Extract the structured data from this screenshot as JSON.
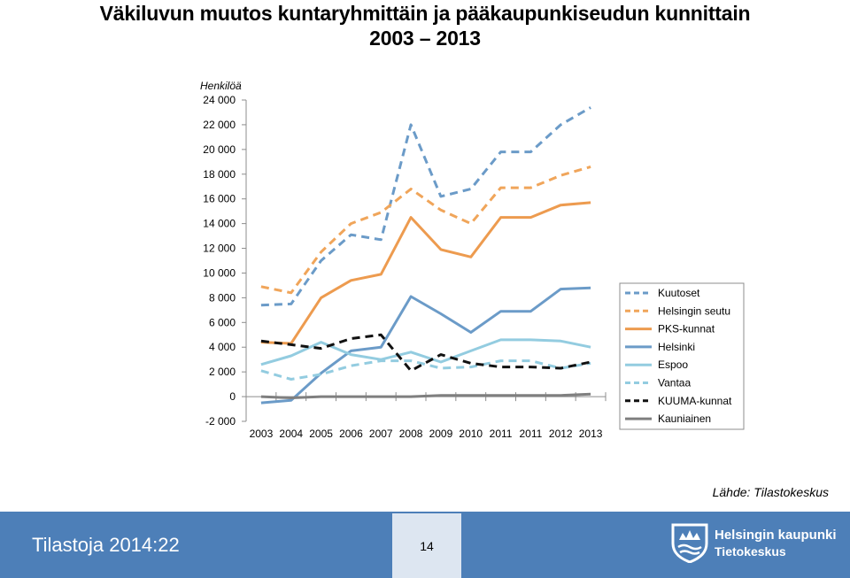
{
  "chart_data": {
    "type": "line",
    "title": "Väkiluvun muutos kuntaryhmittäin ja pääkaupunkiseudun kunnittain",
    "subtitle": "2003 – 2013",
    "ylabel": "Henkilöä",
    "xlabel": "",
    "ylim": [
      -2000,
      24000
    ],
    "yticks": [
      "24 000",
      "22 000",
      "20 000",
      "18 000",
      "16 000",
      "14 000",
      "12 000",
      "10 000",
      "8 000",
      "6 000",
      "4 000",
      "2 000",
      "0",
      "-2 000"
    ],
    "categories": [
      "2003",
      "2004",
      "2005",
      "2006",
      "2007",
      "2008",
      "2009",
      "2010",
      "2011",
      "2011",
      "2012",
      "2013"
    ],
    "legend_position": "right",
    "series": [
      {
        "name": "Kuutoset",
        "color": "#6b9bc8",
        "dash": "dashed",
        "values": [
          7400,
          7500,
          11000,
          13100,
          12700,
          22000,
          16200,
          16800,
          19800,
          19800,
          22000,
          23400
        ]
      },
      {
        "name": "Helsingin seutu",
        "color": "#f0a55a",
        "dash": "dashed",
        "values": [
          8900,
          8400,
          11700,
          14000,
          14900,
          16800,
          15100,
          14000,
          16900,
          16900,
          17900,
          18600
        ]
      },
      {
        "name": "PKS-kunnat",
        "color": "#ed9b4f",
        "dash": "solid",
        "values": [
          4400,
          4300,
          8000,
          9400,
          9900,
          14500,
          11900,
          11300,
          14500,
          14500,
          15500,
          15700
        ]
      },
      {
        "name": "Helsinki",
        "color": "#6b9bc8",
        "dash": "solid",
        "values": [
          -500,
          -300,
          1900,
          3700,
          4000,
          8100,
          6700,
          5200,
          6900,
          6900,
          8700,
          8800
        ]
      },
      {
        "name": "Espoo",
        "color": "#93cce0",
        "dash": "solid",
        "values": [
          2600,
          3300,
          4400,
          3400,
          3000,
          3600,
          2800,
          3700,
          4600,
          4600,
          4500,
          4000
        ]
      },
      {
        "name": "Vantaa",
        "color": "#93cce0",
        "dash": "dashed",
        "values": [
          2100,
          1400,
          1800,
          2500,
          2900,
          2900,
          2300,
          2400,
          2900,
          2900,
          2300,
          2700
        ]
      },
      {
        "name": "KUUMA-kunnat",
        "color": "#111111",
        "dash": "dashed",
        "values": [
          4500,
          4200,
          3900,
          4700,
          5000,
          2100,
          3400,
          2700,
          2400,
          2400,
          2300,
          2800
        ]
      },
      {
        "name": "Kauniainen",
        "color": "#7f7f7f",
        "dash": "solid",
        "values": [
          0,
          -100,
          0,
          0,
          0,
          0,
          100,
          100,
          100,
          100,
          100,
          200
        ]
      }
    ]
  },
  "source": "Lähde: Tilastokeskus",
  "footer": {
    "publication": "Tilastoja 2014:22",
    "page": "14",
    "logo_line1": "Helsingin kaupunki",
    "logo_line2": "Tietokeskus"
  }
}
